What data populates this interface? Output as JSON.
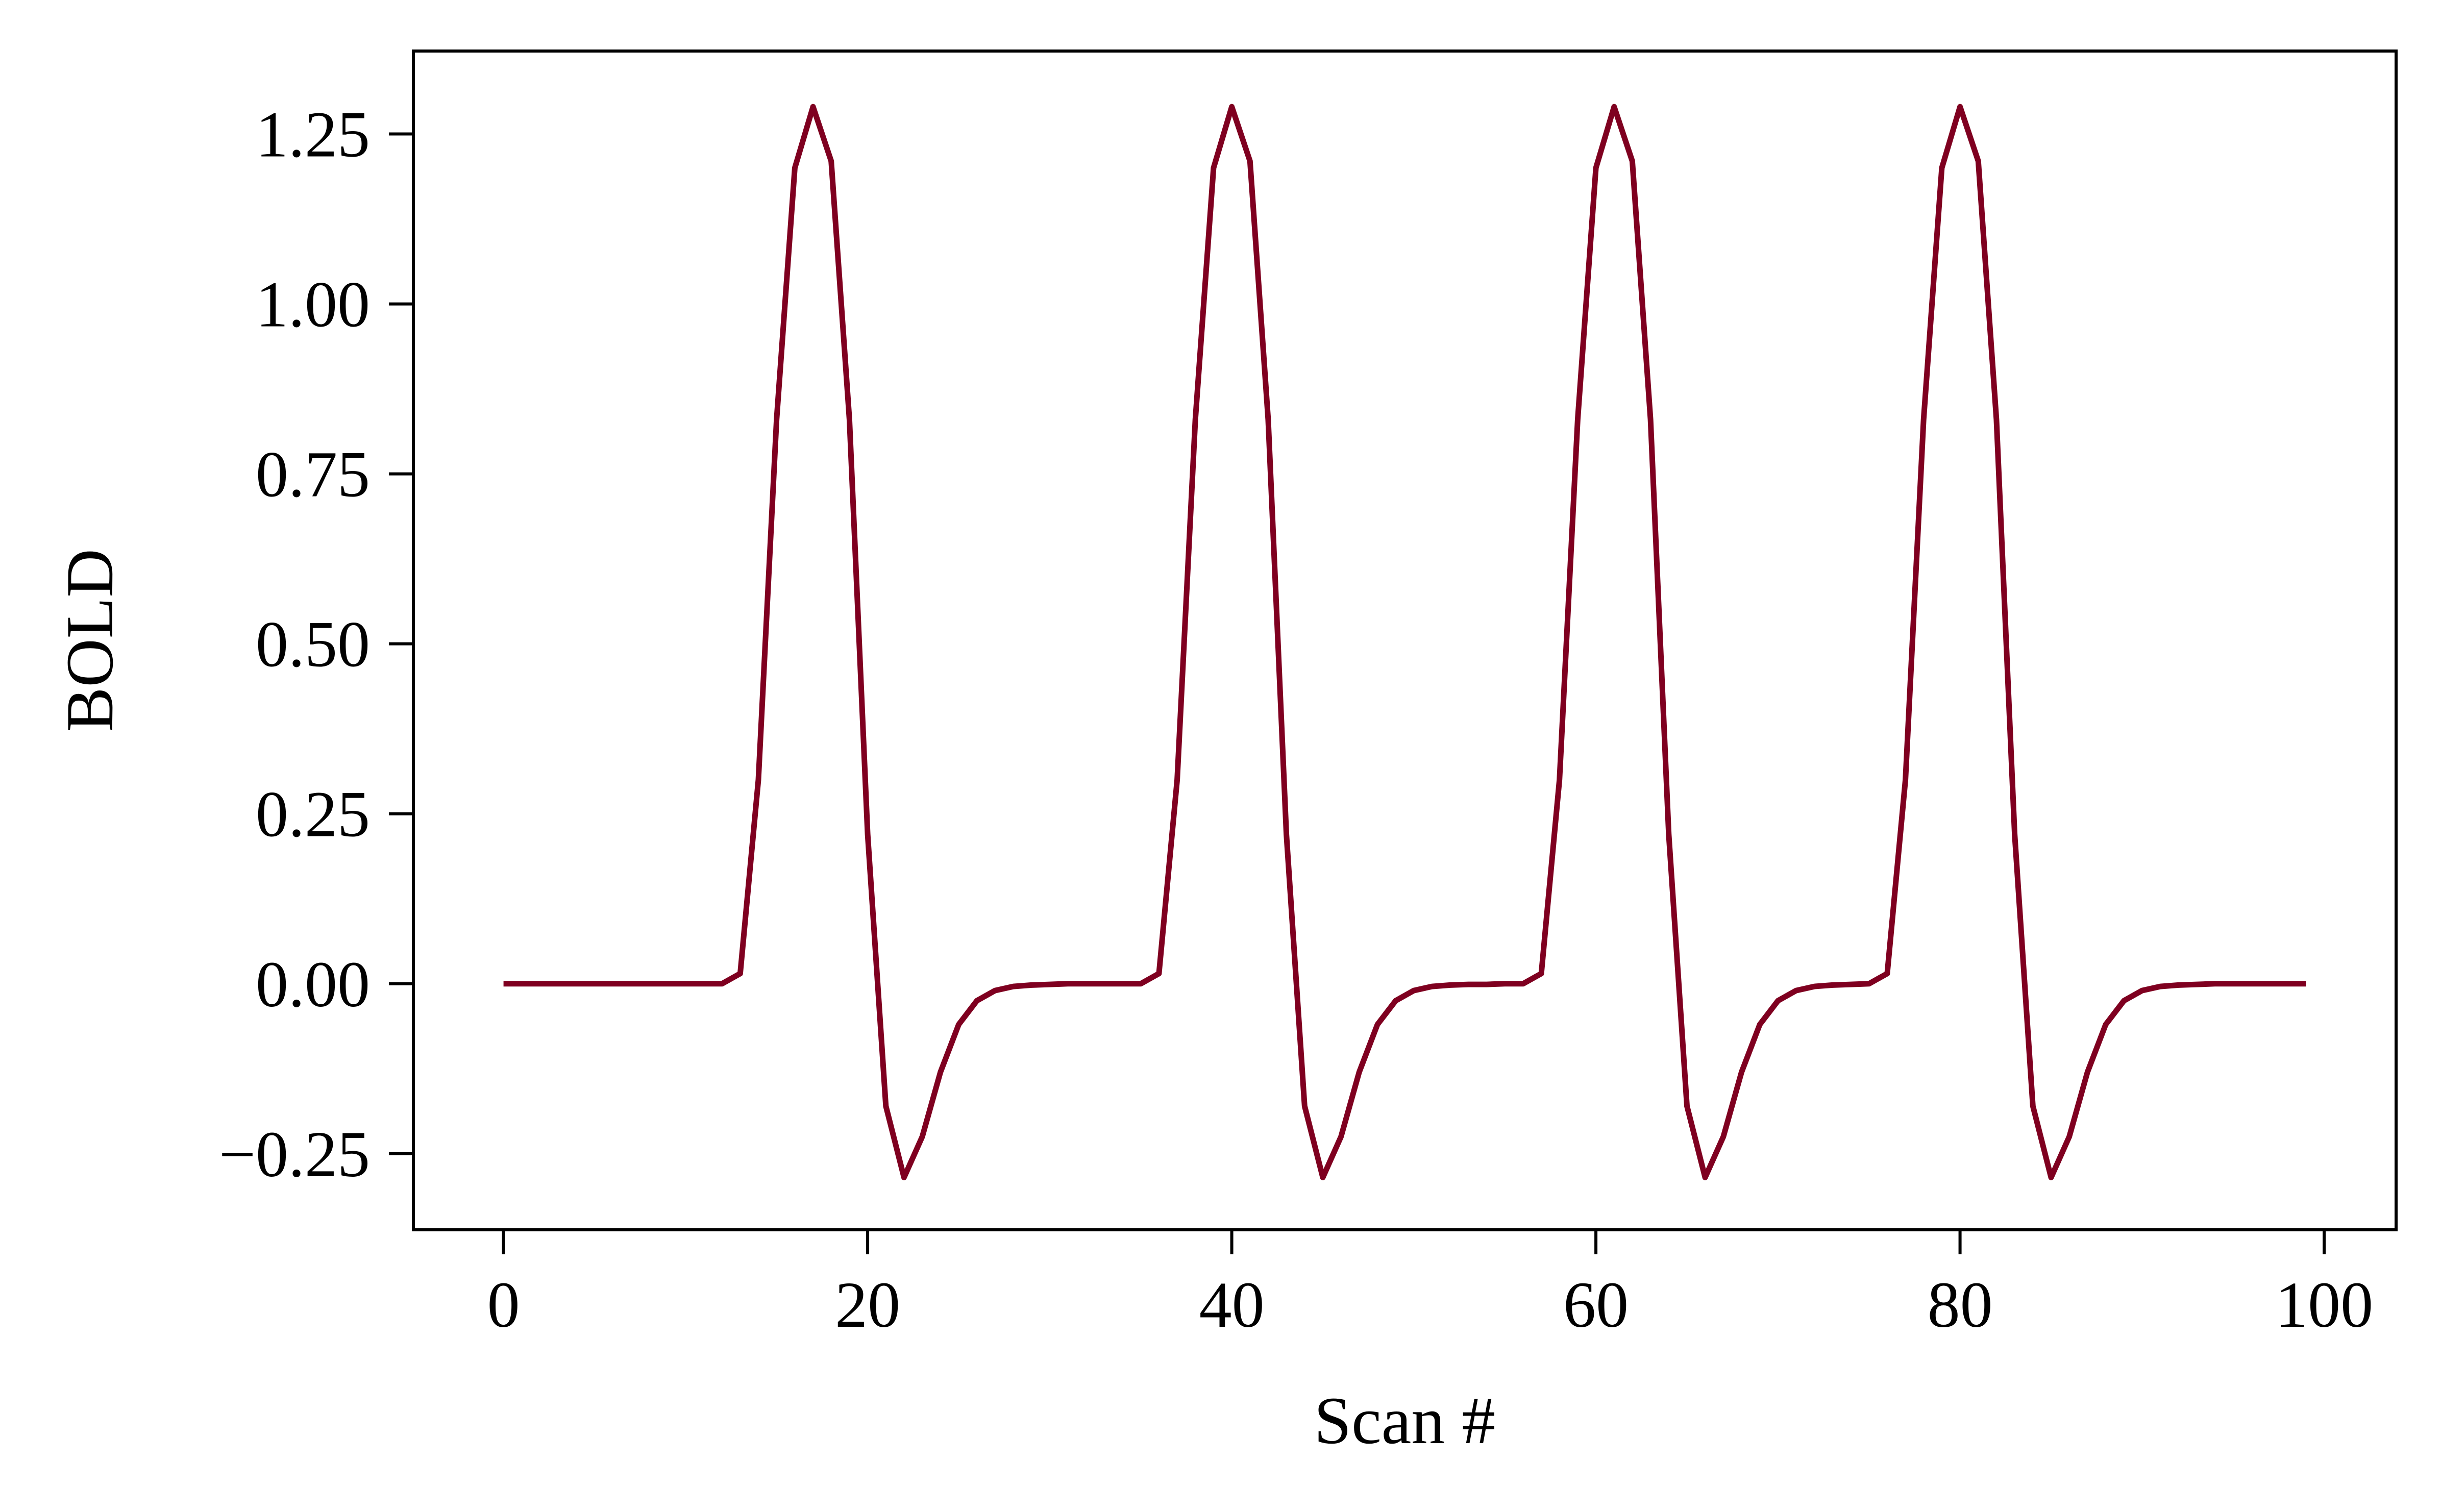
{
  "chart_data": {
    "type": "line",
    "title": "",
    "xlabel": "Scan #",
    "ylabel": "BOLD",
    "xlim": [
      -4.95,
      103.95
    ],
    "ylim": [
      -0.362,
      1.372
    ],
    "xticks": [
      0,
      20,
      40,
      60,
      80,
      100
    ],
    "xtick_labels": [
      "0",
      "20",
      "40",
      "60",
      "80",
      "100"
    ],
    "yticks": [
      -0.25,
      0,
      0.25,
      0.5,
      0.75,
      1.0,
      1.25
    ],
    "ytick_labels": [
      "−0.25",
      "0.00",
      "0.25",
      "0.50",
      "0.75",
      "1.00",
      "1.25"
    ],
    "grid": false,
    "legend": "none",
    "colors": {
      "line": "#7f0020",
      "axes": "#000000"
    },
    "series": [
      {
        "x": [
          0,
          1,
          2,
          3,
          4,
          5,
          6,
          7,
          8,
          9,
          10,
          11,
          12,
          13,
          14,
          15,
          16,
          17,
          18,
          19,
          20,
          21,
          22,
          23,
          24,
          25,
          26,
          27,
          28,
          29,
          30,
          31,
          32,
          33,
          34,
          35,
          36,
          37,
          38,
          39,
          40,
          41,
          42,
          43,
          44,
          45,
          46,
          47,
          48,
          49,
          50,
          51,
          52,
          53,
          54,
          55,
          56,
          57,
          58,
          59,
          60,
          61,
          62,
          63,
          64,
          65,
          66,
          67,
          68,
          69,
          70,
          71,
          72,
          73,
          74,
          75,
          76,
          77,
          78,
          79,
          80,
          81,
          82,
          83,
          84,
          85,
          86,
          87,
          88,
          89,
          90,
          91,
          92,
          93,
          94,
          95,
          96,
          97,
          98,
          99
        ],
        "y": [
          0,
          0,
          0,
          0,
          0,
          0,
          0,
          0,
          0,
          0,
          0,
          0,
          0,
          0.015,
          0.3,
          0.83,
          1.2,
          1.29,
          1.21,
          0.83,
          0.22,
          -0.18,
          -0.285,
          -0.225,
          -0.13,
          -0.06,
          -0.025,
          -0.01,
          -0.004,
          -0.002,
          -0.001,
          0,
          0,
          0,
          0,
          0,
          0.015,
          0.3,
          0.83,
          1.2,
          1.29,
          1.21,
          0.83,
          0.22,
          -0.18,
          -0.285,
          -0.225,
          -0.13,
          -0.06,
          -0.025,
          -0.01,
          -0.004,
          -0.002,
          -0.001,
          -0.001,
          0,
          0,
          0.015,
          0.3,
          0.83,
          1.2,
          1.29,
          1.21,
          0.83,
          0.22,
          -0.18,
          -0.285,
          -0.225,
          -0.13,
          -0.06,
          -0.025,
          -0.01,
          -0.004,
          -0.002,
          -0.001,
          0,
          0.015,
          0.3,
          0.83,
          1.2,
          1.29,
          1.21,
          0.83,
          0.22,
          -0.18,
          -0.285,
          -0.225,
          -0.13,
          -0.06,
          -0.025,
          -0.01,
          -0.004,
          -0.002,
          -0.001,
          0,
          0,
          0,
          0,
          0,
          0
        ]
      }
    ]
  }
}
